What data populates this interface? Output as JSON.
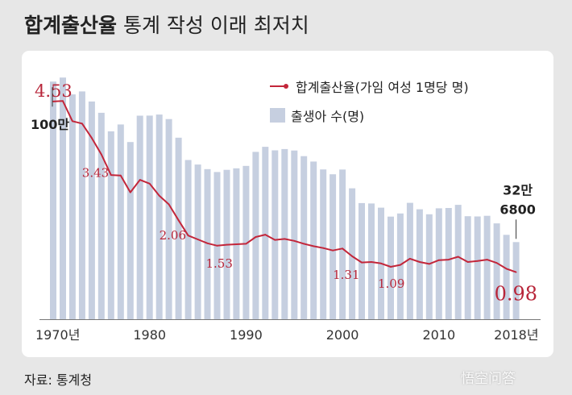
{
  "title": {
    "bold": "합계출산율",
    "rest": " 통계 작성 이래 최저치"
  },
  "source": "자료: 통계청",
  "watermark": "悟空问答",
  "colors": {
    "background": "#e7e7e7",
    "panel": "#ffffff",
    "bar": "#c6cfe0",
    "line": "#c3263a",
    "label_red": "#b8263a",
    "axis_text": "#333333"
  },
  "legend": {
    "line_label": "합계출산율(가임 여성 1명당 명)",
    "bar_label": "출생아 수(명)"
  },
  "chart_data": {
    "type": "bar",
    "categories": [
      1970,
      1971,
      1972,
      1973,
      1974,
      1975,
      1976,
      1977,
      1978,
      1979,
      1980,
      1981,
      1982,
      1983,
      1984,
      1985,
      1986,
      1987,
      1988,
      1989,
      1990,
      1991,
      1992,
      1993,
      1994,
      1995,
      1996,
      1997,
      1998,
      1999,
      2000,
      2001,
      2002,
      2003,
      2004,
      2005,
      2006,
      2007,
      2008,
      2009,
      2010,
      2011,
      2012,
      2013,
      2014,
      2015,
      2016,
      2017,
      2018
    ],
    "x_tick_labels": [
      {
        "year": 1970,
        "text": "1970년"
      },
      {
        "year": 1980,
        "text": "1980"
      },
      {
        "year": 1990,
        "text": "1990"
      },
      {
        "year": 2000,
        "text": "2000"
      },
      {
        "year": 2010,
        "text": "2010"
      },
      {
        "year": 2018,
        "text": "2018년"
      }
    ],
    "series": [
      {
        "name": "출생아 수(명)",
        "type": "bar",
        "values": [
          1007000,
          1024000,
          952800,
          965500,
          922800,
          874900,
          796300,
          825300,
          750700,
          862700,
          862800,
          867400,
          848300,
          769200,
          674800,
          655500,
          636000,
          623800,
          633100,
          639400,
          649700,
          709300,
          730700,
          715800,
          721200,
          715000,
          691200,
          668300,
          634800,
          614200,
          634500,
          554900,
          492100,
          490500,
          472800,
          435000,
          448200,
          493200,
          465900,
          444800,
          470200,
          471300,
          484600,
          436500,
          435400,
          438400,
          406200,
          357800,
          326800
        ],
        "ylim": [
          0,
          1100000
        ]
      },
      {
        "name": "합계출산율(가임 여성 1명당 명)",
        "type": "line",
        "values": [
          4.53,
          4.54,
          4.12,
          4.07,
          3.77,
          3.43,
          3.0,
          2.99,
          2.64,
          2.9,
          2.82,
          2.57,
          2.39,
          2.06,
          1.74,
          1.66,
          1.58,
          1.53,
          1.55,
          1.56,
          1.57,
          1.71,
          1.76,
          1.65,
          1.67,
          1.63,
          1.57,
          1.52,
          1.48,
          1.43,
          1.47,
          1.31,
          1.18,
          1.19,
          1.16,
          1.09,
          1.13,
          1.26,
          1.19,
          1.15,
          1.23,
          1.24,
          1.3,
          1.19,
          1.21,
          1.24,
          1.17,
          1.05,
          0.98
        ],
        "ylim": [
          0,
          5.4
        ]
      }
    ],
    "line_labels": [
      {
        "year": 1970,
        "text": "4.53"
      },
      {
        "year": 1975,
        "text": "3.43"
      },
      {
        "year": 1983,
        "text": "2.06"
      },
      {
        "year": 1987,
        "text": "1.53"
      },
      {
        "year": 2001,
        "text": "1.31"
      },
      {
        "year": 2005,
        "text": "1.09"
      },
      {
        "year": 2018,
        "text": "0.98"
      }
    ],
    "bar_labels": [
      {
        "year": 1970,
        "text": "100만"
      },
      {
        "year": 2018,
        "text_line1": "32만",
        "text_line2": "6800"
      }
    ],
    "grid": false,
    "legend_position": "top-right"
  }
}
